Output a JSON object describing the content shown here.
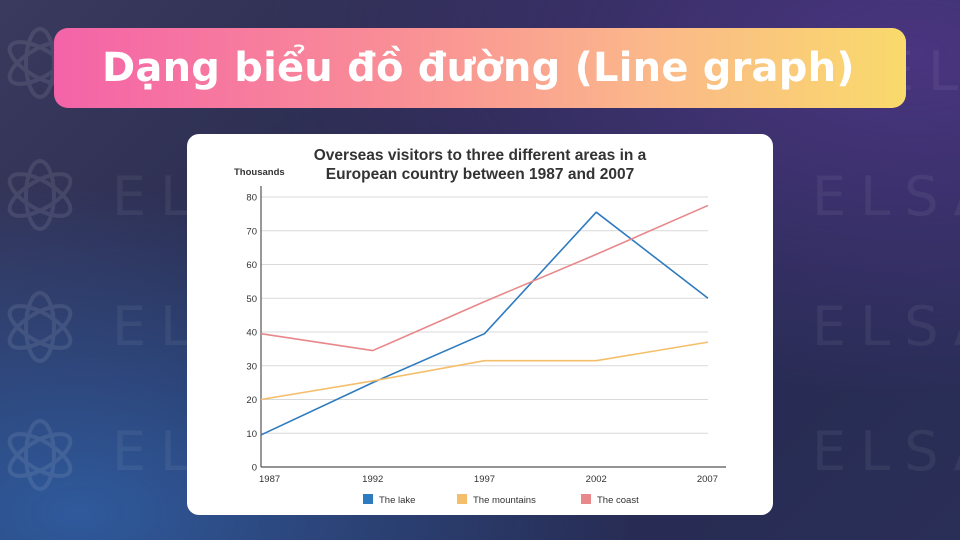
{
  "banner": {
    "title": "Dạng biểu đồ đường (Line graph)"
  },
  "watermark": {
    "text": "ELSA"
  },
  "chart_data": {
    "type": "line",
    "title_line1": "Overseas visitors to three different areas in a",
    "title_line2": "European country between 1987 and 2007",
    "ylabel": "Thousands",
    "xlabel": "",
    "ylim": [
      0,
      80
    ],
    "yticks": [
      "0",
      "10",
      "20",
      "30",
      "40",
      "50",
      "60",
      "70",
      "80"
    ],
    "categories": [
      "1987",
      "1992",
      "1997",
      "2002",
      "2007"
    ],
    "series": [
      {
        "name": "The lake",
        "color": "#2e7bbf",
        "values": [
          9.5,
          25,
          39.5,
          75.5,
          50
        ]
      },
      {
        "name": "The mountains",
        "color": "#f5be6a",
        "values": [
          20,
          25.5,
          31.5,
          31.5,
          37
        ]
      },
      {
        "name": "The coast",
        "color": "#e8888a",
        "values": [
          39.5,
          34.5,
          49,
          63,
          77.5
        ]
      }
    ],
    "legend": "bottom",
    "grid": true
  }
}
